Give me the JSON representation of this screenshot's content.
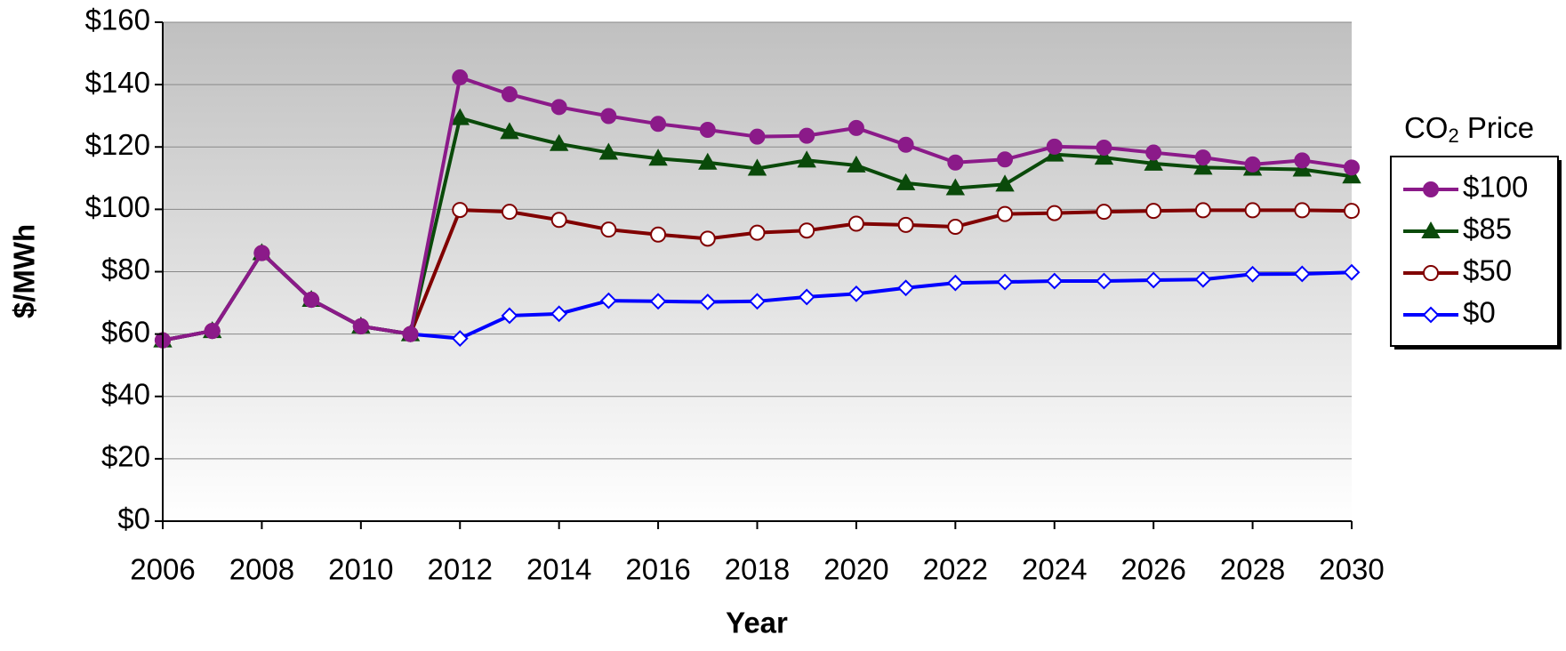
{
  "chart_data": {
    "type": "line",
    "y_label": "$/MWh",
    "x_label": "Year",
    "legend_title": [
      "CO",
      "2",
      " Price"
    ],
    "legend": "right",
    "grid": true,
    "x": [
      2006,
      2007,
      2008,
      2009,
      2010,
      2011,
      2012,
      2013,
      2014,
      2015,
      2016,
      2017,
      2018,
      2019,
      2020,
      2021,
      2022,
      2023,
      2024,
      2025,
      2026,
      2027,
      2028,
      2029,
      2030
    ],
    "xlim": [
      2006,
      2030
    ],
    "xticks": [
      2006,
      2008,
      2010,
      2012,
      2014,
      2016,
      2018,
      2020,
      2022,
      2024,
      2026,
      2028,
      2030
    ],
    "ylim": [
      0,
      160
    ],
    "yticks": [
      {
        "value": 0,
        "label": "$0"
      },
      {
        "value": 20,
        "label": "$20"
      },
      {
        "value": 40,
        "label": "$40"
      },
      {
        "value": 60,
        "label": "$60"
      },
      {
        "value": 80,
        "label": "$80"
      },
      {
        "value": 100,
        "label": "$100"
      },
      {
        "value": 120,
        "label": "$120"
      },
      {
        "value": 140,
        "label": "$140"
      },
      {
        "value": 160,
        "label": "$160"
      }
    ],
    "series": [
      {
        "name": "$100",
        "color": "#8b1a89",
        "marker": "circle",
        "filled": true,
        "values": [
          58,
          61,
          86,
          71,
          62.5,
          60,
          142.3,
          136.9,
          132.8,
          129.9,
          127.4,
          125.5,
          123.3,
          123.6,
          126.1,
          120.7,
          115,
          116,
          120.1,
          119.8,
          118.2,
          116.6,
          114.4,
          115.7,
          113.4
        ]
      },
      {
        "name": "$85",
        "color": "#0a4a0a",
        "marker": "triangle",
        "filled": true,
        "values": [
          58,
          61,
          86,
          71,
          62.5,
          60,
          129.3,
          124.8,
          121,
          118.2,
          116.3,
          115,
          113.1,
          115.7,
          114.1,
          108.4,
          106.8,
          108,
          117.6,
          116.6,
          114.7,
          113.4,
          113.1,
          112.8,
          110.6
        ]
      },
      {
        "name": "$50",
        "color": "#800000",
        "marker": "circle",
        "filled": false,
        "values": [
          58,
          61,
          86,
          71,
          62.5,
          60,
          99.8,
          99.2,
          96.6,
          93.5,
          91.9,
          90.6,
          92.5,
          93.2,
          95.4,
          95,
          94.4,
          98.5,
          98.8,
          99.2,
          99.5,
          99.7,
          99.7,
          99.7,
          99.5
        ]
      },
      {
        "name": "$0",
        "color": "#0000ff",
        "marker": "diamond",
        "filled": false,
        "values": [
          58,
          61,
          86,
          71,
          62.5,
          60,
          58.6,
          65.9,
          66.5,
          70.7,
          70.5,
          70.3,
          70.5,
          71.9,
          72.9,
          74.8,
          76.4,
          76.7,
          77,
          77,
          77.3,
          77.5,
          79.2,
          79.3,
          79.8
        ]
      }
    ]
  }
}
